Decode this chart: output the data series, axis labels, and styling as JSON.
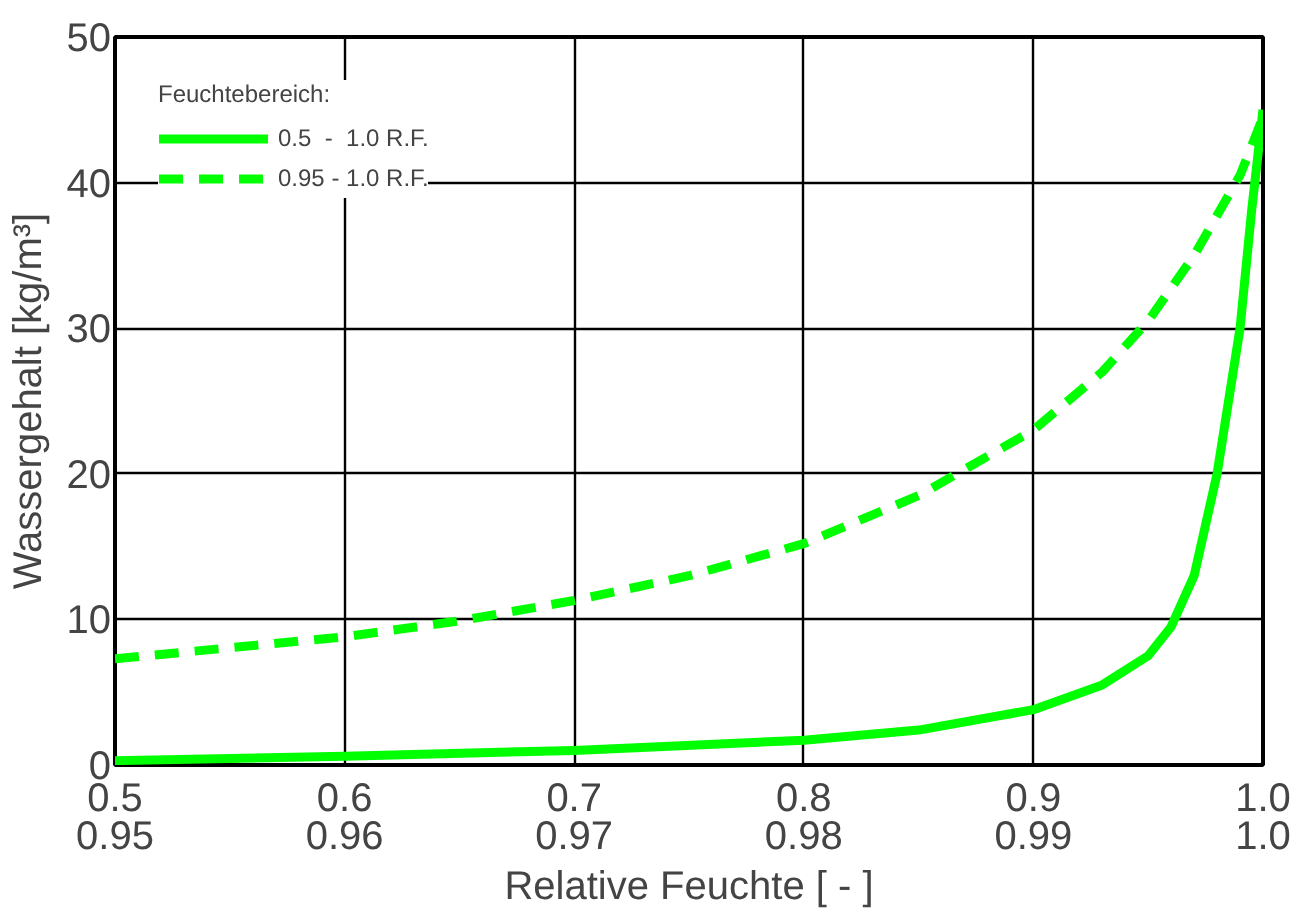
{
  "chart_data": {
    "type": "line",
    "xlabel": "Relative Feuchte [ - ]",
    "ylabel": "Wassergehalt [kg/m³]",
    "legend_title": "Feuchtebereich:",
    "xlim": [
      0.5,
      1.0
    ],
    "xticks": [
      0.5,
      0.6,
      0.7,
      0.8,
      0.9,
      {
        "value": 1.0,
        "label": "1.0"
      }
    ],
    "x2lim": [
      0.95,
      1.0
    ],
    "x2ticks": [
      0.95,
      0.96,
      0.97,
      0.98,
      0.99,
      {
        "value": 1.0,
        "label": "1.0"
      }
    ],
    "ylim": [
      0,
      50
    ],
    "yticks": [
      0,
      10,
      20,
      30,
      40,
      50
    ],
    "grid": true,
    "legend": "top left",
    "series": [
      {
        "name": "0.5  -  1.0 R.F.",
        "color": "#00ff00",
        "line_style": "solid",
        "x": [
          0.5,
          0.6,
          0.7,
          0.8,
          0.85,
          0.9,
          0.93,
          0.95,
          0.96,
          0.97,
          0.98,
          0.99,
          0.995,
          1.0
        ],
        "values": [
          0.3,
          0.6,
          1.0,
          1.7,
          2.4,
          3.8,
          5.5,
          7.5,
          9.5,
          13,
          20,
          30,
          38,
          45
        ]
      },
      {
        "name": "0.95 - 1.0 R.F.",
        "color": "#00ff00",
        "line_style": "dashed",
        "axis": "x2",
        "x": [
          0.95,
          0.96,
          0.965,
          0.97,
          0.975,
          0.98,
          0.985,
          0.99,
          0.993,
          0.995,
          0.997,
          0.999,
          1.0
        ],
        "values": [
          7.3,
          8.8,
          9.9,
          11.3,
          13,
          15.2,
          18.5,
          23,
          27,
          30.5,
          35,
          40.5,
          44.5
        ]
      }
    ]
  }
}
